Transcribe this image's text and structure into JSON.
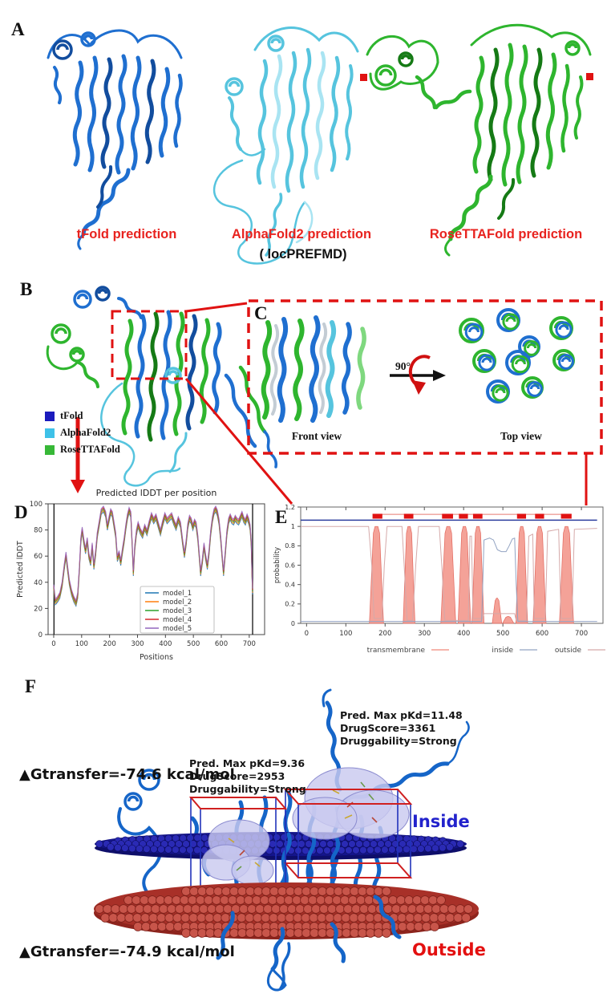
{
  "figure": {
    "panel_a": {
      "label": "A",
      "captions": [
        "tFold prediction",
        "AlphaFold2 prediction",
        "RoseTTAFold prediction"
      ],
      "subcaption": "( locPREFMD)",
      "caption_color": "#e8231f"
    },
    "panel_b": {
      "label": "B",
      "legend": [
        {
          "name": "tFold",
          "color": "#1b1bbd"
        },
        {
          "name": "AlphaFold2",
          "color": "#3ec1e8"
        },
        {
          "name": "RoseTTAFold",
          "color": "#37b837"
        }
      ]
    },
    "panel_c": {
      "label": "C",
      "rotation": "90°",
      "front": "Front view",
      "top": "Top view"
    },
    "panel_d": {
      "label": "D"
    },
    "panel_e": {
      "label": "E"
    },
    "panel_f": {
      "label": "F",
      "pocket1": {
        "line1": "Pred. Max pKd=11.48",
        "line2": "DrugScore=3361",
        "line3": "Druggability=Strong"
      },
      "pocket2": {
        "line1": "Pred. Max pKd=9.36",
        "line2": "DrugScore=2953",
        "line3": "Druggability=Strong"
      },
      "dg_inside": "▲Gtransfer=-74.6 kcal/mol",
      "dg_outside": "▲Gtransfer=-74.9 kcal/mol",
      "inside_label": "Inside",
      "outside_label": "Outside",
      "inside_color": "#2222cc",
      "outside_color": "#e31010"
    }
  },
  "chart_data": [
    {
      "type": "line",
      "title": "Predicted lDDT per position",
      "xlabel": "Positions",
      "ylabel": "Predicted lDDT",
      "xlim": [
        -20,
        755
      ],
      "ylim": [
        0,
        100
      ],
      "xticks": [
        0,
        100,
        200,
        300,
        400,
        500,
        600,
        700
      ],
      "yticks": [
        0,
        20,
        40,
        60,
        80,
        100
      ],
      "boundary_vlines": [
        1,
        712
      ],
      "legend": [
        {
          "name": "model_1",
          "color": "#1f77b4"
        },
        {
          "name": "model_2",
          "color": "#ff7f0e"
        },
        {
          "name": "model_3",
          "color": "#2ca02c"
        },
        {
          "name": "model_4",
          "color": "#d62728"
        },
        {
          "name": "model_5",
          "color": "#9467bd"
        }
      ],
      "note": "five model curves overlap closely; points give the shared approximate profile",
      "points": [
        [
          0,
          36
        ],
        [
          6,
          25
        ],
        [
          14,
          27
        ],
        [
          22,
          30
        ],
        [
          30,
          38
        ],
        [
          38,
          52
        ],
        [
          44,
          61
        ],
        [
          50,
          50
        ],
        [
          56,
          40
        ],
        [
          64,
          32
        ],
        [
          72,
          27
        ],
        [
          80,
          24
        ],
        [
          86,
          30
        ],
        [
          92,
          50
        ],
        [
          97,
          72
        ],
        [
          102,
          80
        ],
        [
          108,
          71
        ],
        [
          114,
          64
        ],
        [
          120,
          72
        ],
        [
          126,
          60
        ],
        [
          132,
          55
        ],
        [
          138,
          68
        ],
        [
          144,
          52
        ],
        [
          150,
          62
        ],
        [
          156,
          76
        ],
        [
          163,
          85
        ],
        [
          170,
          94
        ],
        [
          178,
          96
        ],
        [
          186,
          92
        ],
        [
          192,
          82
        ],
        [
          198,
          88
        ],
        [
          204,
          94
        ],
        [
          210,
          92
        ],
        [
          216,
          84
        ],
        [
          222,
          76
        ],
        [
          228,
          58
        ],
        [
          234,
          62
        ],
        [
          240,
          55
        ],
        [
          246,
          64
        ],
        [
          252,
          72
        ],
        [
          258,
          82
        ],
        [
          264,
          90
        ],
        [
          270,
          95
        ],
        [
          276,
          92
        ],
        [
          281,
          68
        ],
        [
          285,
          47
        ],
        [
          290,
          66
        ],
        [
          296,
          78
        ],
        [
          302,
          84
        ],
        [
          310,
          79
        ],
        [
          318,
          76
        ],
        [
          326,
          82
        ],
        [
          334,
          78
        ],
        [
          342,
          85
        ],
        [
          350,
          91
        ],
        [
          358,
          87
        ],
        [
          366,
          90
        ],
        [
          374,
          84
        ],
        [
          382,
          78
        ],
        [
          390,
          85
        ],
        [
          398,
          91
        ],
        [
          406,
          87
        ],
        [
          414,
          89
        ],
        [
          422,
          91
        ],
        [
          430,
          86
        ],
        [
          438,
          82
        ],
        [
          446,
          88
        ],
        [
          454,
          84
        ],
        [
          462,
          70
        ],
        [
          468,
          61
        ],
        [
          474,
          70
        ],
        [
          480,
          83
        ],
        [
          486,
          89
        ],
        [
          492,
          87
        ],
        [
          498,
          82
        ],
        [
          504,
          86
        ],
        [
          510,
          84
        ],
        [
          516,
          74
        ],
        [
          522,
          58
        ],
        [
          526,
          47
        ],
        [
          532,
          56
        ],
        [
          538,
          68
        ],
        [
          544,
          59
        ],
        [
          550,
          52
        ],
        [
          556,
          63
        ],
        [
          562,
          78
        ],
        [
          568,
          88
        ],
        [
          574,
          94
        ],
        [
          580,
          96
        ],
        [
          586,
          93
        ],
        [
          592,
          86
        ],
        [
          598,
          73
        ],
        [
          604,
          57
        ],
        [
          608,
          47
        ],
        [
          614,
          62
        ],
        [
          620,
          78
        ],
        [
          626,
          87
        ],
        [
          632,
          90
        ],
        [
          638,
          87
        ],
        [
          644,
          86
        ],
        [
          650,
          89
        ],
        [
          656,
          87
        ],
        [
          662,
          86
        ],
        [
          668,
          89
        ],
        [
          674,
          92
        ],
        [
          680,
          88
        ],
        [
          686,
          86
        ],
        [
          692,
          90
        ],
        [
          698,
          87
        ],
        [
          703,
          82
        ],
        [
          707,
          70
        ],
        [
          710,
          45
        ],
        [
          712,
          33
        ]
      ]
    },
    {
      "type": "area+line",
      "title": "",
      "xlabel": "",
      "ylabel": "probability",
      "xlim": [
        -15,
        755
      ],
      "ylim": [
        0,
        1.2
      ],
      "xticks": [
        0,
        100,
        200,
        300,
        400,
        500,
        600,
        700
      ],
      "yticks": [
        0,
        0.2,
        0.4,
        0.6,
        0.8,
        1,
        1.2
      ],
      "ytick_labels": [
        "0",
        "0.2",
        "0.4",
        "0.6",
        "0.8",
        "1",
        "1.2"
      ],
      "legend": [
        {
          "name": "transmembrane",
          "color": "#f0887a"
        },
        {
          "name": "inside",
          "color": "#92a3c2"
        },
        {
          "name": "outside",
          "color": "#d5a9a9"
        }
      ],
      "tm_regions": [
        [
          160,
          196
        ],
        [
          246,
          276
        ],
        [
          342,
          380
        ],
        [
          386,
          418
        ],
        [
          421,
          452
        ],
        [
          533,
          563
        ],
        [
          577,
          610
        ],
        [
          644,
          680
        ]
      ],
      "minor_regions": [
        [
          473,
          497,
          0.26
        ],
        [
          499,
          528,
          0.07
        ]
      ],
      "tm_bars": [
        [
          168,
          193
        ],
        [
          248,
          272
        ],
        [
          345,
          373
        ],
        [
          388,
          411
        ],
        [
          424,
          448
        ],
        [
          536,
          559
        ],
        [
          582,
          605
        ],
        [
          648,
          675
        ]
      ],
      "tm_bar_y": [
        1.08,
        1.13
      ],
      "tm_bar_color": "#e01212",
      "top_line_y": 1.065,
      "top_line_color": "#2c3e9e",
      "bar_link_y": 1.125,
      "bar_link_color": "#e87a70",
      "outside_curve": [
        [
          -15,
          1
        ],
        [
          158,
          1
        ],
        [
          166,
          0.6
        ],
        [
          172,
          0.05
        ],
        [
          192,
          0.05
        ],
        [
          198,
          0.6
        ],
        [
          205,
          1
        ],
        [
          243,
          1
        ],
        [
          250,
          0.5
        ],
        [
          256,
          0.03
        ],
        [
          270,
          0.03
        ],
        [
          278,
          0.6
        ],
        [
          285,
          1
        ],
        [
          338,
          1
        ],
        [
          346,
          0.5
        ],
        [
          352,
          0.03
        ],
        [
          412,
          0.03
        ],
        [
          416,
          0.9
        ],
        [
          420,
          0.9
        ],
        [
          424,
          0.05
        ],
        [
          448,
          0.05
        ],
        [
          452,
          0.1
        ],
        [
          530,
          0.1
        ],
        [
          534,
          0.03
        ],
        [
          560,
          0.03
        ],
        [
          566,
          0.9
        ],
        [
          576,
          0.92
        ],
        [
          580,
          0.05
        ],
        [
          608,
          0.05
        ],
        [
          614,
          0.95
        ],
        [
          642,
          0.97
        ],
        [
          648,
          0.05
        ],
        [
          676,
          0.05
        ],
        [
          682,
          0.97
        ],
        [
          740,
          0.98
        ]
      ],
      "inside_curve": [
        [
          -15,
          0.02
        ],
        [
          446,
          0.02
        ],
        [
          452,
          0.86
        ],
        [
          466,
          0.88
        ],
        [
          476,
          0.86
        ],
        [
          486,
          0.76
        ],
        [
          496,
          0.74
        ],
        [
          508,
          0.74
        ],
        [
          516,
          0.8
        ],
        [
          524,
          0.87
        ],
        [
          530,
          0.88
        ],
        [
          534,
          0.4
        ],
        [
          538,
          0.02
        ],
        [
          740,
          0.02
        ]
      ]
    }
  ]
}
